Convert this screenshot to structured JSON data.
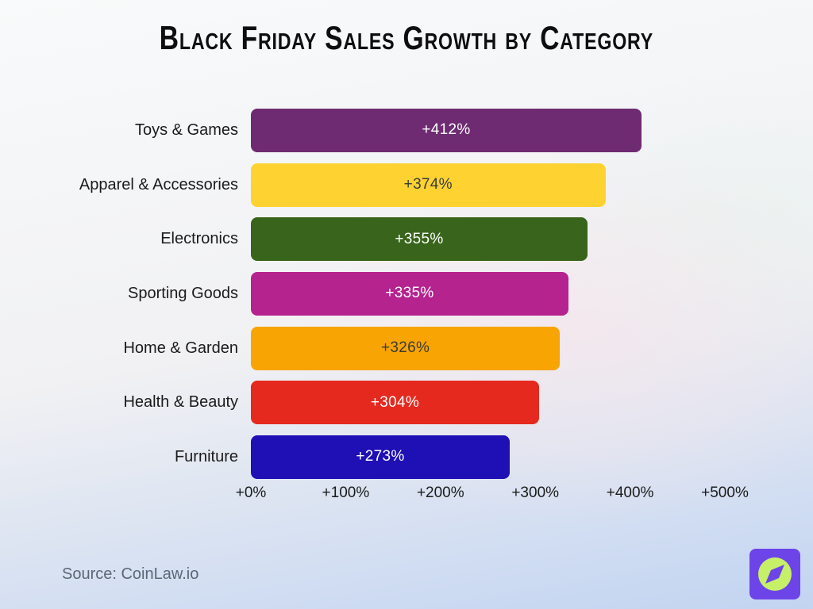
{
  "title": "Black Friday Sales Growth by Category",
  "source": "Source: CoinLaw.io",
  "chart_data": {
    "type": "bar",
    "orientation": "horizontal",
    "title": "Black Friday Sales Growth by Category",
    "categories": [
      "Toys & Games",
      "Apparel & Accessories",
      "Electronics",
      "Sporting Goods",
      "Home & Garden",
      "Health & Beauty",
      "Furniture"
    ],
    "values": [
      412,
      374,
      355,
      335,
      326,
      304,
      273
    ],
    "value_labels": [
      "+412%",
      "+374%",
      "+355%",
      "+335%",
      "+326%",
      "+304%",
      "+273%"
    ],
    "bar_colors": [
      "#6F2B72",
      "#FED231",
      "#38651B",
      "#B5238F",
      "#F8A403",
      "#E5291F",
      "#1E10B4"
    ],
    "value_label_colors": [
      "#FFFFFF",
      "#3A3A3A",
      "#FFFFFF",
      "#FFFFFF",
      "#3A3A3A",
      "#FFFFFF",
      "#FFFFFF"
    ],
    "x_ticks": [
      "+0%",
      "+100%",
      "+200%",
      "+300%",
      "+400%",
      "+500%"
    ],
    "xlim": [
      0,
      500
    ],
    "xlabel": "",
    "ylabel": "",
    "grid": false,
    "legend": false
  },
  "logo": {
    "name": "coinlaw-logo",
    "square_color": "#6D44E8",
    "circle_color": "#C6F068",
    "needle_color": "#6D44E8"
  }
}
